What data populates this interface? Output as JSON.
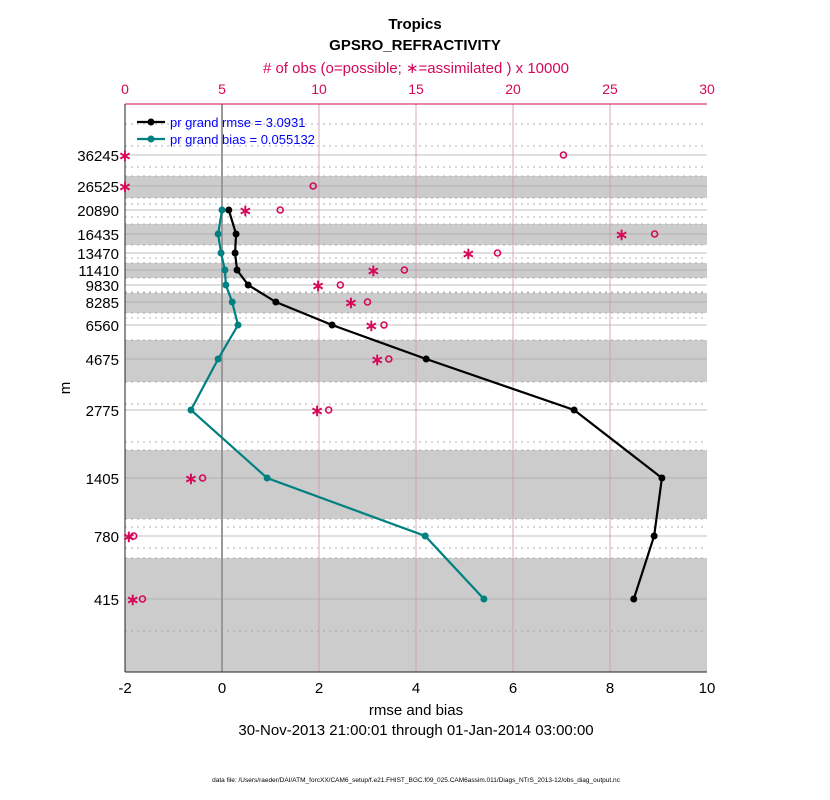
{
  "chart_data": {
    "type": "line",
    "title": "Tropics",
    "subtitle": "GPSRO_REFRACTIVITY",
    "top_xlabel": "# of obs (o=possible; ∗=assimilated ) x 10000",
    "xlabel": "rmse and bias",
    "ylabel": "m",
    "date_range": "30-Nov-2013 21:00:01 through 01-Jan-2014 03:00:00",
    "footnote": "data file: /Users/raeder/DAI/ATM_forcXX/CAM6_setup/f.e21.FHIST_BGC.f09_025.CAM6assim.011/Diags_NTrS_2013-12/obs_diag_output.nc",
    "xlim": [
      -2,
      10
    ],
    "xticks": [
      "-2",
      "0",
      "2",
      "4",
      "6",
      "8",
      "10"
    ],
    "top_xlim": [
      0,
      30
    ],
    "top_xticks": [
      "0",
      "5",
      "10",
      "15",
      "20",
      "25",
      "30"
    ],
    "levels": [
      "36245",
      "26525",
      "20890",
      "16435",
      "13470",
      "11410",
      "9830",
      "8285",
      "6560",
      "4675",
      "2775",
      "1405",
      "780",
      "415"
    ],
    "series": [
      {
        "name": "pr grand rmse = 3.0931",
        "color": "#000000",
        "values": [
          null,
          null,
          0.14,
          0.29,
          0.27,
          0.31,
          0.54,
          1.11,
          2.27,
          4.21,
          7.26,
          9.07,
          8.91,
          8.49
        ]
      },
      {
        "name": "pr grand bias = 0.055132",
        "color": "#008080",
        "values": [
          null,
          null,
          0.0,
          -0.08,
          -0.02,
          0.06,
          0.08,
          0.21,
          0.33,
          -0.08,
          -0.64,
          0.93,
          4.19,
          5.4
        ]
      }
    ],
    "obs_possible": [
      22.6,
      9.7,
      8.0,
      27.3,
      19.2,
      14.4,
      11.1,
      12.5,
      13.35,
      13.6,
      10.5,
      4.0,
      0.45,
      0.9
    ],
    "obs_assimilated": [
      0,
      0,
      6.2,
      25.6,
      17.7,
      12.8,
      9.95,
      11.65,
      12.7,
      13.0,
      9.9,
      3.4,
      0.2,
      0.4
    ],
    "obs_color": "#d6085a",
    "legend_color": "#0000ff",
    "legend_position": "top-left",
    "shaded_levels": [
      "26525",
      "16435",
      "11410",
      "8285",
      "4675",
      "1405",
      "415"
    ]
  }
}
